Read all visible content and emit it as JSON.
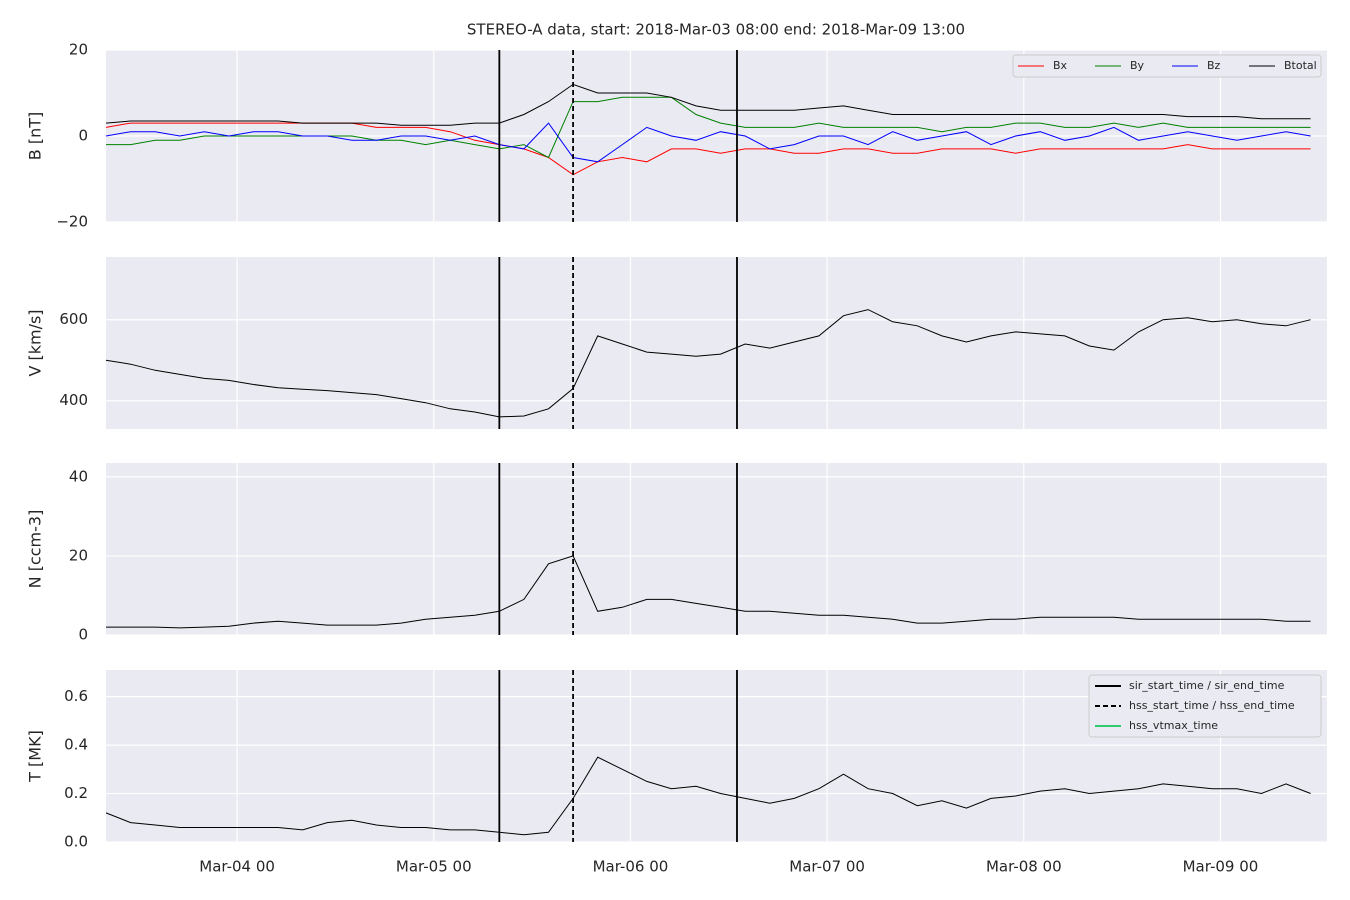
{
  "chart_data": [
    {
      "type": "line",
      "title": "STEREO-A data, start: 2018-Mar-03 08:00  end: 2018-Mar-09 13:00",
      "ylabel": "B [nT]",
      "x": [
        "Mar-03 08",
        "Mar-03 11",
        "Mar-03 14",
        "Mar-03 17",
        "Mar-03 20",
        "Mar-03 23",
        "Mar-04 02",
        "Mar-04 05",
        "Mar-04 08",
        "Mar-04 11",
        "Mar-04 14",
        "Mar-04 17",
        "Mar-04 20",
        "Mar-04 23",
        "Mar-05 02",
        "Mar-05 05",
        "Mar-05 08",
        "Mar-05 11",
        "Mar-05 14",
        "Mar-05 17",
        "Mar-05 20",
        "Mar-05 23",
        "Mar-06 02",
        "Mar-06 05",
        "Mar-06 08",
        "Mar-06 11",
        "Mar-06 14",
        "Mar-06 17",
        "Mar-06 20",
        "Mar-06 23",
        "Mar-07 02",
        "Mar-07 05",
        "Mar-07 08",
        "Mar-07 11",
        "Mar-07 14",
        "Mar-07 17",
        "Mar-07 20",
        "Mar-07 23",
        "Mar-08 02",
        "Mar-08 05",
        "Mar-08 08",
        "Mar-08 11",
        "Mar-08 14",
        "Mar-08 17",
        "Mar-08 20",
        "Mar-08 23",
        "Mar-09 02",
        "Mar-09 05",
        "Mar-09 08",
        "Mar-09 11"
      ],
      "series": [
        {
          "name": "Bx",
          "color": "#ff0000",
          "values": [
            2,
            3,
            3,
            3,
            3,
            3,
            3,
            3,
            3,
            3,
            3,
            2,
            2,
            2,
            1,
            -1,
            -2,
            -3,
            -5,
            -9,
            -6,
            -5,
            -6,
            -3,
            -3,
            -4,
            -3,
            -3,
            -4,
            -4,
            -3,
            -3,
            -4,
            -4,
            -3,
            -3,
            -3,
            -4,
            -3,
            -3,
            -3,
            -3,
            -3,
            -3,
            -2,
            -3,
            -3,
            -3,
            -3,
            -3
          ]
        },
        {
          "name": "By",
          "color": "#008000",
          "values": [
            -2,
            -2,
            -1,
            -1,
            0,
            0,
            0,
            0,
            0,
            0,
            0,
            -1,
            -1,
            -2,
            -1,
            -2,
            -3,
            -2,
            -5,
            8,
            8,
            9,
            9,
            9,
            5,
            3,
            2,
            2,
            2,
            3,
            2,
            2,
            2,
            2,
            1,
            2,
            2,
            3,
            3,
            2,
            2,
            3,
            2,
            3,
            2,
            2,
            2,
            2,
            2,
            2
          ]
        },
        {
          "name": "Bz",
          "color": "#0000ff",
          "values": [
            0,
            1,
            1,
            0,
            1,
            0,
            1,
            1,
            0,
            0,
            -1,
            -1,
            0,
            0,
            -1,
            0,
            -2,
            -3,
            3,
            -5,
            -6,
            -2,
            2,
            0,
            -1,
            1,
            0,
            -3,
            -2,
            0,
            0,
            -2,
            1,
            -1,
            0,
            1,
            -2,
            0,
            1,
            -1,
            0,
            2,
            -1,
            0,
            1,
            0,
            -1,
            0,
            1,
            0
          ]
        },
        {
          "name": "Btotal",
          "color": "#000000",
          "values": [
            3,
            3.5,
            3.5,
            3.5,
            3.5,
            3.5,
            3.5,
            3.5,
            3,
            3,
            3,
            3,
            2.5,
            2.5,
            2.5,
            3,
            3,
            5,
            8,
            12,
            10,
            10,
            10,
            9,
            7,
            6,
            6,
            6,
            6,
            6.5,
            7,
            6,
            5,
            5,
            5,
            5,
            5,
            5,
            5,
            5,
            5,
            5,
            5,
            5,
            4.5,
            4.5,
            4.5,
            4,
            4,
            4
          ]
        }
      ],
      "xlim": [
        "Mar-03 08",
        "Mar-09 13"
      ],
      "xticks": [
        "Mar-04 00",
        "Mar-05 00",
        "Mar-06 00",
        "Mar-07 00",
        "Mar-08 00",
        "Mar-09 00"
      ],
      "ylim": [
        -20,
        20
      ],
      "yticks": [
        {
          "value": -20,
          "label": "−20"
        },
        0,
        20
      ],
      "grid": true,
      "legend": "upper right"
    },
    {
      "type": "line",
      "ylabel": "V [km/s]",
      "x": [
        "Mar-03 08",
        "Mar-03 11",
        "Mar-03 14",
        "Mar-03 17",
        "Mar-03 20",
        "Mar-03 23",
        "Mar-04 02",
        "Mar-04 05",
        "Mar-04 08",
        "Mar-04 11",
        "Mar-04 14",
        "Mar-04 17",
        "Mar-04 20",
        "Mar-04 23",
        "Mar-05 02",
        "Mar-05 05",
        "Mar-05 08",
        "Mar-05 11",
        "Mar-05 14",
        "Mar-05 17",
        "Mar-05 20",
        "Mar-05 23",
        "Mar-06 02",
        "Mar-06 05",
        "Mar-06 08",
        "Mar-06 11",
        "Mar-06 14",
        "Mar-06 17",
        "Mar-06 20",
        "Mar-06 23",
        "Mar-07 02",
        "Mar-07 05",
        "Mar-07 08",
        "Mar-07 11",
        "Mar-07 14",
        "Mar-07 17",
        "Mar-07 20",
        "Mar-07 23",
        "Mar-08 02",
        "Mar-08 05",
        "Mar-08 08",
        "Mar-08 11",
        "Mar-08 14",
        "Mar-08 17",
        "Mar-08 20",
        "Mar-08 23",
        "Mar-09 02",
        "Mar-09 05",
        "Mar-09 08",
        "Mar-09 11"
      ],
      "values": [
        500,
        490,
        475,
        465,
        455,
        450,
        440,
        432,
        428,
        425,
        420,
        415,
        405,
        395,
        380,
        372,
        360,
        362,
        380,
        430,
        560,
        540,
        520,
        515,
        510,
        515,
        540,
        530,
        545,
        560,
        610,
        625,
        595,
        585,
        560,
        545,
        560,
        570,
        565,
        560,
        535,
        525,
        570,
        600,
        605,
        595,
        600,
        590,
        585,
        600
      ],
      "color": "#000000",
      "xlim": [
        "Mar-03 08",
        "Mar-09 13"
      ],
      "xticks": [
        "Mar-04 00",
        "Mar-05 00",
        "Mar-06 00",
        "Mar-07 00",
        "Mar-08 00",
        "Mar-09 00"
      ],
      "ylim": [
        330,
        755
      ],
      "yticks": [
        400,
        600
      ],
      "grid": true
    },
    {
      "type": "line",
      "ylabel": "N [ccm-3]",
      "x": [
        "Mar-03 08",
        "Mar-03 11",
        "Mar-03 14",
        "Mar-03 17",
        "Mar-03 20",
        "Mar-03 23",
        "Mar-04 02",
        "Mar-04 05",
        "Mar-04 08",
        "Mar-04 11",
        "Mar-04 14",
        "Mar-04 17",
        "Mar-04 20",
        "Mar-04 23",
        "Mar-05 02",
        "Mar-05 05",
        "Mar-05 08",
        "Mar-05 11",
        "Mar-05 14",
        "Mar-05 17",
        "Mar-05 20",
        "Mar-05 23",
        "Mar-06 02",
        "Mar-06 05",
        "Mar-06 08",
        "Mar-06 11",
        "Mar-06 14",
        "Mar-06 17",
        "Mar-06 20",
        "Mar-06 23",
        "Mar-07 02",
        "Mar-07 05",
        "Mar-07 08",
        "Mar-07 11",
        "Mar-07 14",
        "Mar-07 17",
        "Mar-07 20",
        "Mar-07 23",
        "Mar-08 02",
        "Mar-08 05",
        "Mar-08 08",
        "Mar-08 11",
        "Mar-08 14",
        "Mar-08 17",
        "Mar-08 20",
        "Mar-08 23",
        "Mar-09 02",
        "Mar-09 05",
        "Mar-09 08",
        "Mar-09 11"
      ],
      "values": [
        2,
        2,
        2,
        1.8,
        2,
        2.2,
        3,
        3.5,
        3,
        2.5,
        2.5,
        2.5,
        3,
        4,
        4.5,
        5,
        6,
        9,
        18,
        20,
        6,
        7,
        9,
        9,
        8,
        7,
        6,
        6,
        5.5,
        5,
        5,
        4.5,
        4,
        3,
        3,
        3.5,
        4,
        4,
        4.5,
        4.5,
        4.5,
        4.5,
        4,
        4,
        4,
        4,
        4,
        4,
        3.5,
        3.5
      ],
      "color": "#000000",
      "xlim": [
        "Mar-03 08",
        "Mar-09 13"
      ],
      "xticks": [
        "Mar-04 00",
        "Mar-05 00",
        "Mar-06 00",
        "Mar-07 00",
        "Mar-08 00",
        "Mar-09 00"
      ],
      "ylim": [
        0,
        43.5
      ],
      "yticks": [
        0,
        20,
        40
      ],
      "grid": true
    },
    {
      "type": "line",
      "ylabel": "T [MK]",
      "x": [
        "Mar-03 08",
        "Mar-03 11",
        "Mar-03 14",
        "Mar-03 17",
        "Mar-03 20",
        "Mar-03 23",
        "Mar-04 02",
        "Mar-04 05",
        "Mar-04 08",
        "Mar-04 11",
        "Mar-04 14",
        "Mar-04 17",
        "Mar-04 20",
        "Mar-04 23",
        "Mar-05 02",
        "Mar-05 05",
        "Mar-05 08",
        "Mar-05 11",
        "Mar-05 14",
        "Mar-05 17",
        "Mar-05 20",
        "Mar-05 23",
        "Mar-06 02",
        "Mar-06 05",
        "Mar-06 08",
        "Mar-06 11",
        "Mar-06 14",
        "Mar-06 17",
        "Mar-06 20",
        "Mar-06 23",
        "Mar-07 02",
        "Mar-07 05",
        "Mar-07 08",
        "Mar-07 11",
        "Mar-07 14",
        "Mar-07 17",
        "Mar-07 20",
        "Mar-07 23",
        "Mar-08 02",
        "Mar-08 05",
        "Mar-08 08",
        "Mar-08 11",
        "Mar-08 14",
        "Mar-08 17",
        "Mar-08 20",
        "Mar-08 23",
        "Mar-09 02",
        "Mar-09 05",
        "Mar-09 08",
        "Mar-09 11"
      ],
      "values": [
        0.12,
        0.08,
        0.07,
        0.06,
        0.06,
        0.06,
        0.06,
        0.06,
        0.05,
        0.08,
        0.09,
        0.07,
        0.06,
        0.06,
        0.05,
        0.05,
        0.04,
        0.03,
        0.04,
        0.18,
        0.35,
        0.3,
        0.25,
        0.22,
        0.23,
        0.2,
        0.18,
        0.16,
        0.18,
        0.22,
        0.28,
        0.22,
        0.2,
        0.15,
        0.17,
        0.14,
        0.18,
        0.19,
        0.21,
        0.22,
        0.2,
        0.21,
        0.22,
        0.24,
        0.23,
        0.22,
        0.22,
        0.2,
        0.24,
        0.2
      ],
      "color": "#000000",
      "xlim": [
        "Mar-03 08",
        "Mar-09 13"
      ],
      "xticks": [
        "Mar-04 00",
        "Mar-05 00",
        "Mar-06 00",
        "Mar-07 00",
        "Mar-08 00",
        "Mar-09 00"
      ],
      "ylim": [
        0,
        0.71
      ],
      "yticks": [
        {
          "value": 0,
          "label": "0.0"
        },
        0.2,
        0.4,
        0.6
      ],
      "grid": true,
      "markers": [
        {
          "name": "sir_start_time / sir_end_time",
          "color": "#000000",
          "dashed": false,
          "x": [
            "Mar-05 08",
            "Mar-06 13"
          ]
        },
        {
          "name": "hss_start_time / hss_end_time",
          "color": "#000000",
          "dashed": true,
          "x": [
            "Mar-05 17"
          ]
        },
        {
          "name": "hss_vtmax_time",
          "color": "#2ecc71",
          "dashed": false,
          "x": []
        }
      ],
      "legend": "upper right"
    }
  ]
}
